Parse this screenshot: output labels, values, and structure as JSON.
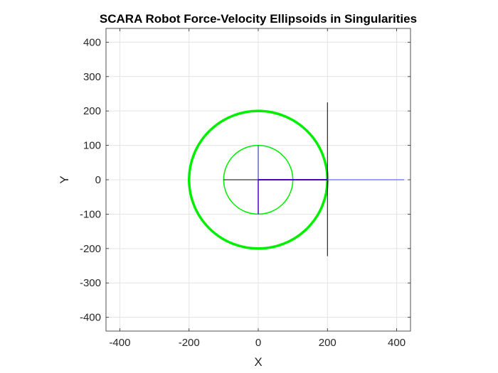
{
  "chart_data": {
    "type": "line",
    "title": "SCARA Robot Force-Velocity Ellipsoids in Singularities",
    "xlabel": "X",
    "ylabel": "Y",
    "xlim": [
      -440,
      440
    ],
    "ylim": [
      -440,
      440
    ],
    "grid": true,
    "x_ticks": [
      -400,
      -200,
      0,
      200,
      400
    ],
    "y_ticks": [
      -400,
      -300,
      -200,
      -100,
      0,
      100,
      200,
      300,
      400
    ],
    "colors": {
      "ellipse": "#00ee00",
      "arm": "#0000ff",
      "velocity_axis": "#6666ff",
      "force_axis": "#000000",
      "grid": "#e3e3e3",
      "axes": "#262626"
    },
    "series": [
      {
        "kind": "ellipse",
        "cx": 0,
        "cy": 0,
        "rx": 200,
        "ry": 200,
        "color": "#00ee00",
        "width": 3.5
      },
      {
        "kind": "ellipse",
        "cx": 0,
        "cy": 0,
        "rx": 100,
        "ry": 100,
        "color": "#00ee00",
        "width": 1.5
      },
      {
        "kind": "segment",
        "x": [
          200,
          200
        ],
        "y": [
          225,
          -222
        ],
        "color": "#000000",
        "width": 1
      },
      {
        "kind": "segment",
        "x": [
          -100,
          0
        ],
        "y": [
          0,
          0
        ],
        "color": "#000000",
        "width": 1
      },
      {
        "kind": "segment",
        "x": [
          0,
          200
        ],
        "y": [
          0,
          0
        ],
        "color": "#4b00cc",
        "width": 2
      },
      {
        "kind": "segment",
        "x": [
          200,
          422
        ],
        "y": [
          0,
          0
        ],
        "color": "#6666ff",
        "width": 1.2
      },
      {
        "kind": "segment",
        "x": [
          0,
          0
        ],
        "y": [
          100,
          0
        ],
        "color": "#1a1aaa",
        "width": 1
      },
      {
        "kind": "segment",
        "x": [
          0,
          0
        ],
        "y": [
          0,
          -100
        ],
        "color": "#4b00cc",
        "width": 1.5
      }
    ]
  }
}
